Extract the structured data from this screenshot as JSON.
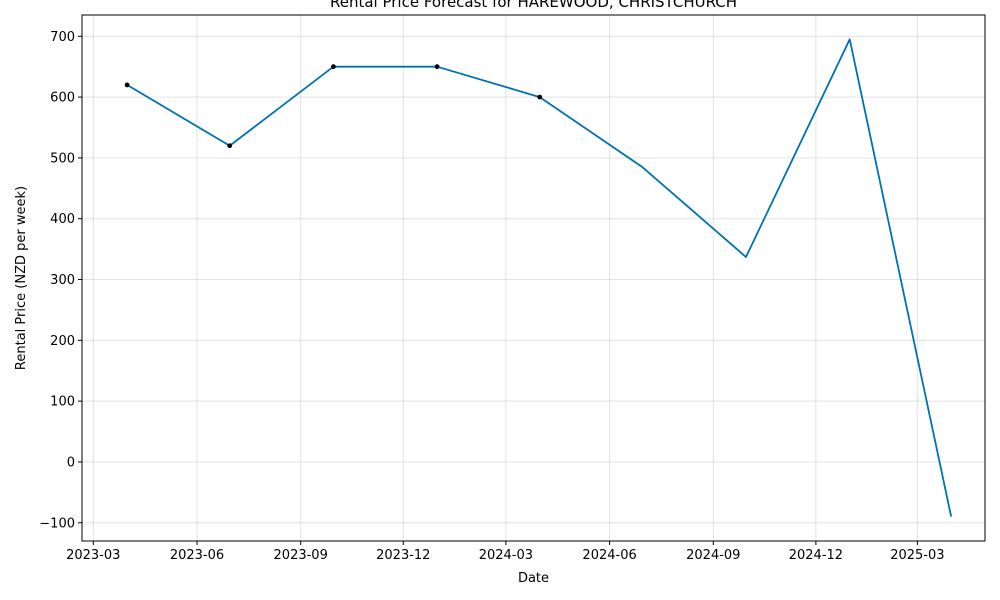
{
  "chart_data": {
    "type": "line",
    "title": "Rental Price Forecast for HAREWOOD, CHRISTCHURCH",
    "xlabel": "Date",
    "ylabel": "Rental Price (NZD per week)",
    "xlim": [
      "2023-02-19",
      "2025-04-30"
    ],
    "ylim": [
      -130,
      735
    ],
    "grid": true,
    "x_ticks": [
      {
        "date": "2023-03-01",
        "label": "2023-03"
      },
      {
        "date": "2023-06-01",
        "label": "2023-06"
      },
      {
        "date": "2023-09-01",
        "label": "2023-09"
      },
      {
        "date": "2023-12-01",
        "label": "2023-12"
      },
      {
        "date": "2024-03-01",
        "label": "2024-03"
      },
      {
        "date": "2024-06-01",
        "label": "2024-06"
      },
      {
        "date": "2024-09-01",
        "label": "2024-09"
      },
      {
        "date": "2024-12-01",
        "label": "2024-12"
      },
      {
        "date": "2025-03-01",
        "label": "2025-03"
      }
    ],
    "y_ticks": [
      {
        "value": -100,
        "label": "−100"
      },
      {
        "value": 0,
        "label": "0"
      },
      {
        "value": 100,
        "label": "100"
      },
      {
        "value": 200,
        "label": "200"
      },
      {
        "value": 300,
        "label": "300"
      },
      {
        "value": 400,
        "label": "400"
      },
      {
        "value": 500,
        "label": "500"
      },
      {
        "value": 600,
        "label": "600"
      },
      {
        "value": 700,
        "label": "700"
      }
    ],
    "series": [
      {
        "style": "markers",
        "color": "#000000",
        "points": [
          {
            "x": "2023-03-31",
            "y": 620
          },
          {
            "x": "2023-06-30",
            "y": 520
          },
          {
            "x": "2023-09-30",
            "y": 650
          },
          {
            "x": "2023-12-31",
            "y": 650
          },
          {
            "x": "2024-03-31",
            "y": 600
          }
        ]
      },
      {
        "style": "line",
        "color": "#0072B2",
        "points": [
          {
            "x": "2023-03-31",
            "y": 620
          },
          {
            "x": "2023-06-30",
            "y": 520
          },
          {
            "x": "2023-09-30",
            "y": 650
          },
          {
            "x": "2023-12-31",
            "y": 650
          },
          {
            "x": "2024-03-31",
            "y": 600
          },
          {
            "x": "2024-06-30",
            "y": 485
          },
          {
            "x": "2024-09-30",
            "y": 337
          },
          {
            "x": "2024-12-31",
            "y": 695
          },
          {
            "x": "2025-03-31",
            "y": -90
          }
        ]
      }
    ]
  }
}
